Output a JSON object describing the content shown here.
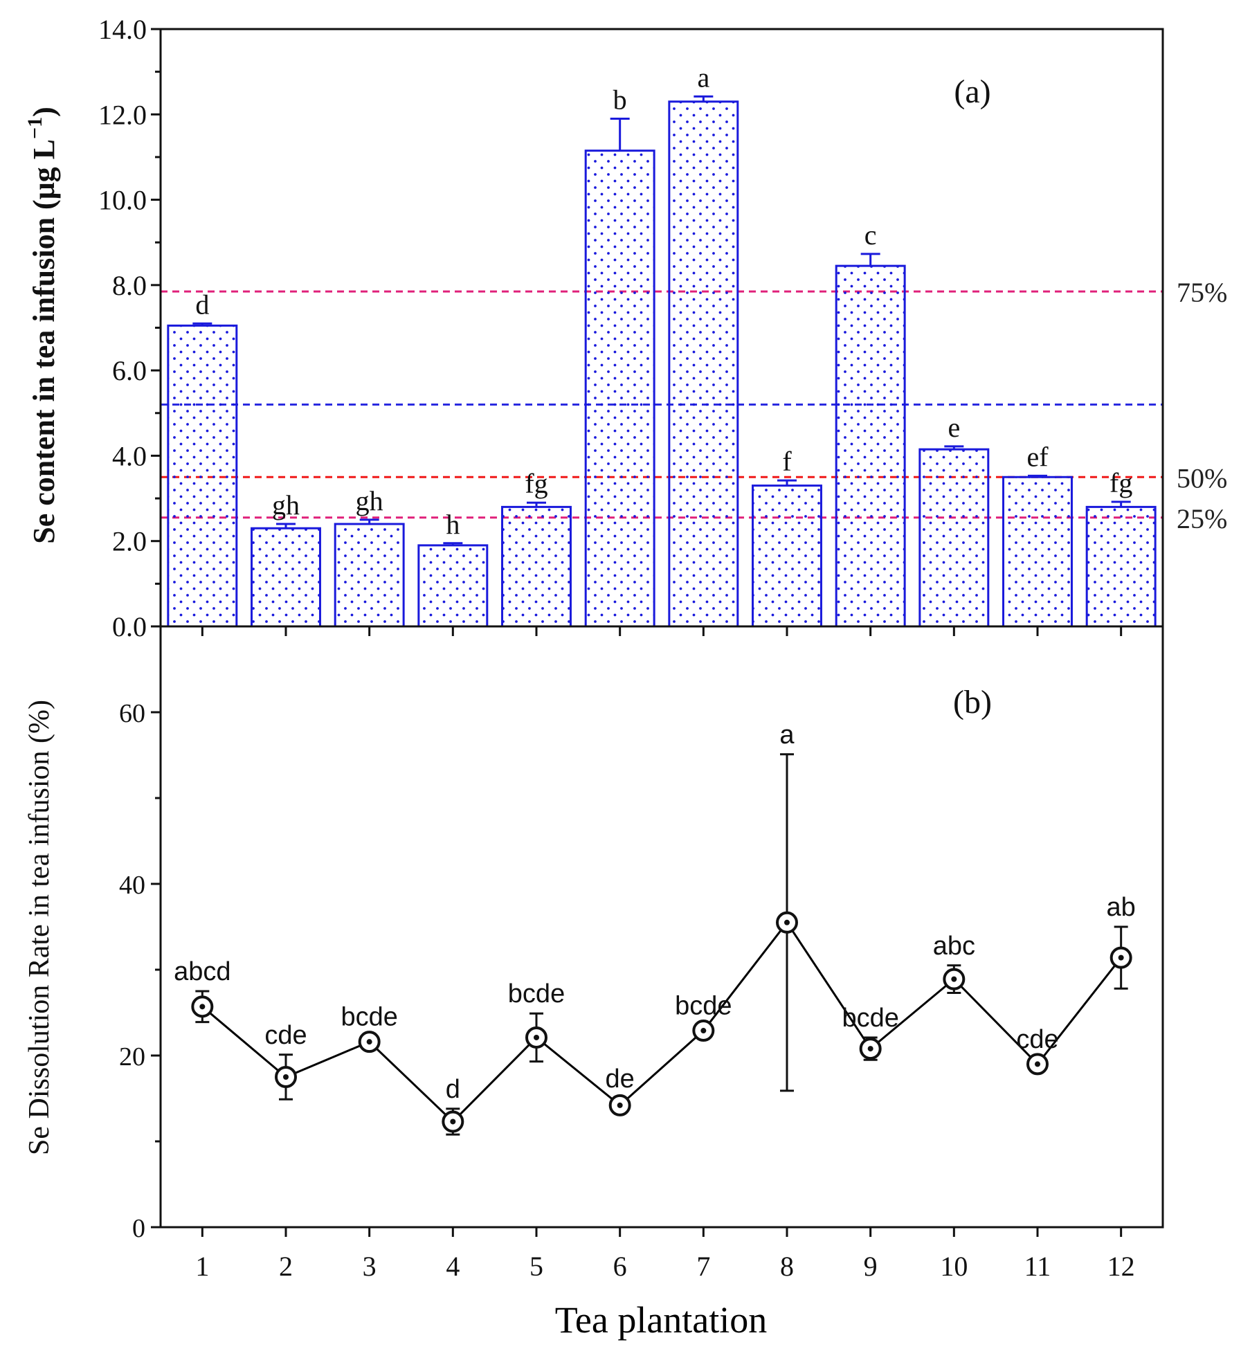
{
  "chart_data": [
    {
      "type": "bar",
      "panel_label": "(a)",
      "ylabel": "Se content in tea infusion (μg L",
      "ylabel_unit_exponent": "−1",
      "ylabel_close": ")",
      "ylim": [
        0,
        14
      ],
      "yticks": [
        0,
        2,
        4,
        6,
        8,
        10,
        12,
        14
      ],
      "ytick_labels": [
        "0.0",
        "2.0",
        "4.0",
        "6.0",
        "8.0",
        "10.0",
        "12.0",
        "14.0"
      ],
      "categories": [
        "1",
        "2",
        "3",
        "4",
        "5",
        "6",
        "7",
        "8",
        "9",
        "10",
        "11",
        "12"
      ],
      "values": [
        7.05,
        2.3,
        2.4,
        1.9,
        2.8,
        11.15,
        12.3,
        3.3,
        8.45,
        4.15,
        3.5,
        2.8
      ],
      "errors": [
        0.05,
        0.1,
        0.1,
        0.05,
        0.1,
        0.75,
        0.12,
        0.12,
        0.28,
        0.07,
        0.03,
        0.12
      ],
      "letters": [
        "d",
        "gh",
        "gh",
        "h",
        "fg",
        "b",
        "a",
        "f",
        "c",
        "e",
        "ef",
        "fg"
      ],
      "bar_color": "#1a1adc",
      "reference_lines": [
        {
          "value": 7.85,
          "label": "75%",
          "color": "#e0207a"
        },
        {
          "value": 5.2,
          "label": "",
          "color": "#2a2ae0"
        },
        {
          "value": 3.5,
          "label": "50%",
          "color": "#f01818"
        },
        {
          "value": 2.55,
          "label": "25%",
          "color": "#e0207a"
        }
      ]
    },
    {
      "type": "line",
      "panel_label": "(b)",
      "xlabel": "Tea plantation",
      "ylabel": "Se Dissolution Rate in tea infusion (%)",
      "ylim": [
        0,
        70
      ],
      "yticks": [
        0,
        20,
        40,
        60
      ],
      "ytick_labels": [
        "0",
        "20",
        "40",
        "60"
      ],
      "x": [
        "1",
        "2",
        "3",
        "4",
        "5",
        "6",
        "7",
        "8",
        "9",
        "10",
        "11",
        "12"
      ],
      "values": [
        25.7,
        17.5,
        21.6,
        12.3,
        22.1,
        14.2,
        22.9,
        35.5,
        20.8,
        28.9,
        19.0,
        31.4
      ],
      "errors": [
        1.8,
        2.6,
        0.6,
        1.5,
        2.8,
        0.8,
        0.6,
        19.6,
        1.3,
        1.6,
        0.6,
        3.6
      ],
      "letters": [
        "abcd",
        "cde",
        "bcde",
        "d",
        "bcde",
        "de",
        "bcde",
        "a",
        "bcde",
        "abc",
        "cde",
        "ab"
      ],
      "line_color": "#000000"
    }
  ]
}
